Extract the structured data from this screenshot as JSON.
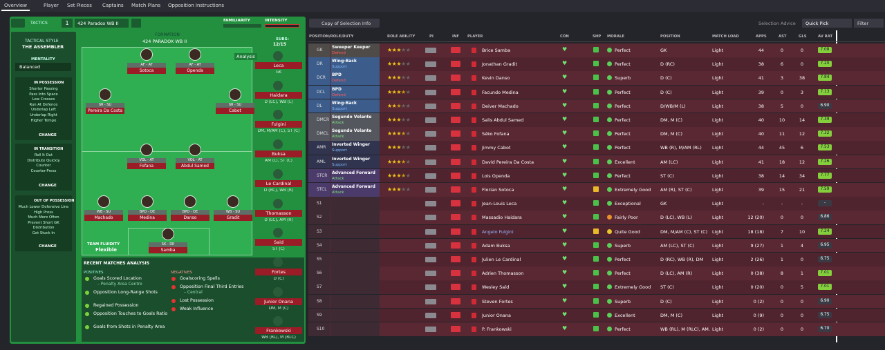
{
  "nav": {
    "tabs": [
      "Overview",
      "Player",
      "Set Pieces",
      "Captains",
      "Match Plans",
      "Opposition Instructions"
    ]
  },
  "tactic": {
    "label": "TACTICS",
    "slot": "1",
    "name": "424 Paradox WB II",
    "familiarity": "FAMILIARITY",
    "intensity": "INTENSITY"
  },
  "style": {
    "heading": "TACTICAL STYLE",
    "value": "THE ASSEMBLER",
    "mentality_label": "MENTALITY",
    "mentality": "Balanced"
  },
  "phases": [
    {
      "title": "IN POSSESSION",
      "items": [
        "Shorter Passing",
        "Pass Into Space",
        "Low Crosses",
        "Run At Defence",
        "Underlap Left",
        "Underlap Right",
        "Higher Tempo"
      ],
      "button": "CHANGE"
    },
    {
      "title": "IN TRANSITION",
      "items": [
        "Roll It Out",
        "Distribute Quickly",
        "Counter",
        "Counter-Press"
      ],
      "button": "CHANGE"
    },
    {
      "title": "OUT OF POSSESSION",
      "items": [
        "Much Lower Defensive Line",
        "High Press",
        "Much More Often",
        "Prevent Short GK",
        "Distribution",
        "Get Stuck In"
      ],
      "button": "CHANGE"
    }
  ],
  "formation": {
    "label": "FORMATION",
    "name": "424 PARADOX WB II",
    "analysis": "Analysis",
    "subs_label": "SUBS:",
    "subs_count": "12/15"
  },
  "pitch": [
    {
      "name": "Sotoca",
      "role": "AF - AT"
    },
    {
      "name": "Openda",
      "role": "AF - AT"
    },
    {
      "name": "Pereira Da Costa",
      "role": "IW - SU"
    },
    {
      "name": "Cabot",
      "role": "IW - SU"
    },
    {
      "name": "Fofana",
      "role": "VOL - AT"
    },
    {
      "name": "Abdul Samed",
      "role": "VOL - AT"
    },
    {
      "name": "Machado",
      "role": "WB - SU"
    },
    {
      "name": "Medina",
      "role": "BPD - DE"
    },
    {
      "name": "Danso",
      "role": "BPD - DE"
    },
    {
      "name": "Gradit",
      "role": "WB - SU"
    },
    {
      "name": "Samba",
      "role": "SK - DE"
    }
  ],
  "fluidity": {
    "label": "TEAM FLUIDITY",
    "value": "Flexible"
  },
  "analysis": {
    "title": "RECENT MATCHES ANALYSIS",
    "positives_label": "POSITIVES",
    "positives": [
      {
        "text": "Goals Scored Location",
        "detail": "– Penalty Area Centre"
      },
      {
        "text": "Opposition Long-Range Shots"
      },
      {
        "text": "Regained Possession"
      },
      {
        "text": "Opposition Touches to Goals Ratio"
      },
      {
        "text": "Goals from Shots in Penalty Area"
      }
    ],
    "negatives_label": "NEGATIVES",
    "negatives": [
      {
        "text": "Goalscoring Spells"
      },
      {
        "text": "Opposition Final Third Entries",
        "detail": "– Central"
      },
      {
        "text": "Lost Possession"
      },
      {
        "text": "Weak Influence"
      }
    ]
  },
  "subs": [
    {
      "name": "Leca",
      "pos": "GK"
    },
    {
      "name": "Haidara",
      "pos": "D (LC), WB (L)"
    },
    {
      "name": "Fulgini",
      "pos": "DM, M/AM (C), ST (C)"
    },
    {
      "name": "Buksa",
      "pos": "AM (L), ST (C)"
    },
    {
      "name": "Le Cardinal",
      "pos": "D (RC), WB (R)"
    },
    {
      "name": "Thomasson",
      "pos": "D (LC), AM (R)"
    },
    {
      "name": "Said",
      "pos": "ST (C)"
    },
    {
      "name": "Fortes",
      "pos": "D (C)"
    },
    {
      "name": "Junior Onana",
      "pos": "DM, M (C)"
    },
    {
      "name": "Frankowski",
      "pos": "WB (RL), M (RLC)"
    }
  ],
  "toolbar": {
    "copy": "Copy of Selection Info",
    "advice": "Selection Advice",
    "quick": "Quick Pick",
    "filter": "Filter"
  },
  "table": {
    "columns": [
      "POSITION/ROLE/DUTY",
      "ROLE ABILITY",
      "PI",
      "INF",
      "PLAYER",
      "CON",
      "SHP",
      "MORALE",
      "POSITION",
      "MATCH LOAD",
      "APPS",
      "AST",
      "GLS",
      "AV RAT"
    ],
    "rows": [
      {
        "code": "GK",
        "role": "Sweeper Keeper",
        "duty": "Defend",
        "color": "#4e4b49",
        "stars": 3,
        "player": "Brice Samba",
        "morale": "Perfect",
        "position": "GK",
        "load": "Light",
        "apps": 44,
        "ast": 0,
        "gls": 0,
        "rat": "7.08"
      },
      {
        "code": "DR",
        "role": "Wing-Back",
        "duty": "Support",
        "color": "#3c5d8c",
        "stars": 3,
        "player": "Jonathan Gradit",
        "morale": "Perfect",
        "position": "D (RC)",
        "load": "Light",
        "apps": 38,
        "ast": 6,
        "gls": 0,
        "rat": "7.20"
      },
      {
        "code": "DCR",
        "role": "BPD",
        "duty": "Defend",
        "color": "#3c5d8c",
        "stars": 3,
        "player": "Kevin Danso",
        "morale": "Superb",
        "position": "D (C)",
        "load": "Light",
        "apps": 41,
        "ast": 3,
        "gls": 38,
        "rat": "7.84"
      },
      {
        "code": "DCL",
        "role": "BPD",
        "duty": "Defend",
        "color": "#3c5d8c",
        "stars": 3.5,
        "player": "Facundo Medina",
        "morale": "Perfect",
        "position": "D (C)",
        "load": "Light",
        "apps": 39,
        "ast": 0,
        "gls": 3,
        "rat": "7.13"
      },
      {
        "code": "DL",
        "role": "Wing-Back",
        "duty": "Support",
        "color": "#3c5d8c",
        "stars": 2.5,
        "player": "Deiver Machado",
        "morale": "Perfect",
        "position": "D/WB/M (L)",
        "load": "Light",
        "apps": 38,
        "ast": 5,
        "gls": 0,
        "rat": "6.90"
      },
      {
        "code": "DMCR",
        "role": "Segundo Volante",
        "duty": "Attack",
        "color": "#55575f",
        "stars": 3,
        "player": "Salis Abdul Samed",
        "morale": "Perfect",
        "position": "DM, M (C)",
        "load": "Light",
        "apps": 40,
        "ast": 10,
        "gls": 14,
        "rat": "7.39"
      },
      {
        "code": "DMCL",
        "role": "Segundo Volante",
        "duty": "Attack",
        "color": "#55575f",
        "stars": 3.5,
        "player": "Séko Fofana",
        "morale": "Perfect",
        "position": "DM, M (C)",
        "load": "Light",
        "apps": 40,
        "ast": 11,
        "gls": 12,
        "rat": "7.32"
      },
      {
        "code": "AMR",
        "role": "Inverted Winger",
        "duty": "Support",
        "color": "#30344f",
        "stars": 3,
        "player": "Jimmy Cabot",
        "morale": "Perfect",
        "position": "WB (R), M/AM (RL)",
        "load": "Light",
        "apps": 44,
        "ast": 45,
        "gls": 6,
        "rat": "7.53"
      },
      {
        "code": "AML",
        "role": "Inverted Winger",
        "duty": "Support",
        "color": "#30344f",
        "stars": 3.5,
        "player": "David Pereira Da Costa",
        "morale": "Excellent",
        "position": "AM (LC)",
        "load": "Light",
        "apps": 41,
        "ast": 18,
        "gls": 12,
        "rat": "7.26"
      },
      {
        "code": "STCR",
        "role": "Advanced Forward",
        "duty": "Attack",
        "color": "#4b3b6b",
        "stars": 3.5,
        "player": "Lois Openda",
        "morale": "Perfect",
        "position": "ST (C)",
        "load": "Light",
        "apps": 38,
        "ast": 14,
        "gls": 34,
        "rat": "7.77"
      },
      {
        "code": "STCL",
        "role": "Advanced Forward",
        "duty": "Attack",
        "color": "#4b3b6b",
        "stars": 3,
        "player": "Florian Sotoca",
        "morale": "Extremely Good",
        "position": "AM (R), ST (C)",
        "load": "Light",
        "apps": 39,
        "ast": 15,
        "gls": 21,
        "rat": "7.59"
      },
      {
        "code": "S1",
        "color": "#3e2a33",
        "player": "Jean-Louis Leca",
        "morale": "Exceptional",
        "position": "GK",
        "load": "Light",
        "apps": "-",
        "ast": "-",
        "gls": "-",
        "rat": "-"
      },
      {
        "code": "S2",
        "color": "#3e2a33",
        "player": "Massadio Haidara",
        "morale": "Fairly Poor",
        "position": "D (LC), WB (L)",
        "load": "Light",
        "apps": "12 (20)",
        "ast": 0,
        "gls": 0,
        "rat": "6.86"
      },
      {
        "code": "S3",
        "color": "#3e2a33",
        "player": "Angelo Fulgini",
        "morale": "Quite Good",
        "position": "DM, M/AM (C), ST (C)",
        "load": "Light",
        "apps": "18 (18)",
        "ast": 7,
        "gls": 10,
        "rat": "7.24"
      },
      {
        "code": "S4",
        "color": "#3e2a33",
        "player": "Adam Buksa",
        "morale": "Superb",
        "position": "AM (LC), ST (C)",
        "load": "Light",
        "apps": "9 (27)",
        "ast": 1,
        "gls": 4,
        "rat": "6.95"
      },
      {
        "code": "S5",
        "color": "#3e2a33",
        "player": "Julien Le Cardinal",
        "morale": "Perfect",
        "position": "D (RC), WB (R), DM",
        "load": "Light",
        "apps": "2 (26)",
        "ast": 1,
        "gls": 0,
        "rat": "6.75"
      },
      {
        "code": "S6",
        "color": "#3e2a33",
        "player": "Adrien Thomasson",
        "morale": "Perfect",
        "position": "D (LC), AM (R)",
        "load": "Light",
        "apps": "0 (38)",
        "ast": 8,
        "gls": 1,
        "rat": "7.01"
      },
      {
        "code": "S7",
        "color": "#3e2a33",
        "player": "Wesley Saïd",
        "morale": "Extremely Good",
        "position": "ST (C)",
        "load": "Light",
        "apps": "0 (20)",
        "ast": 0,
        "gls": 5,
        "rat": "7.01"
      },
      {
        "code": "S8",
        "color": "#3e2a33",
        "player": "Steven Fortes",
        "morale": "Superb",
        "position": "D (C)",
        "load": "Light",
        "apps": "0 (2)",
        "ast": 0,
        "gls": 0,
        "rat": "6.90"
      },
      {
        "code": "S9",
        "color": "#3e2a33",
        "player": "Junior Onana",
        "morale": "Excellent",
        "position": "DM, M (C)",
        "load": "Light",
        "apps": "0 (9)",
        "ast": 0,
        "gls": 0,
        "rat": "6.75"
      },
      {
        "code": "S10",
        "color": "#3e2a33",
        "player": "P. Frankowski",
        "morale": "Perfect",
        "position": "WB (RL), M (RLC), AM...",
        "load": "Light",
        "apps": "0 (2)",
        "ast": 0,
        "gls": 0,
        "rat": "6.70"
      }
    ]
  }
}
